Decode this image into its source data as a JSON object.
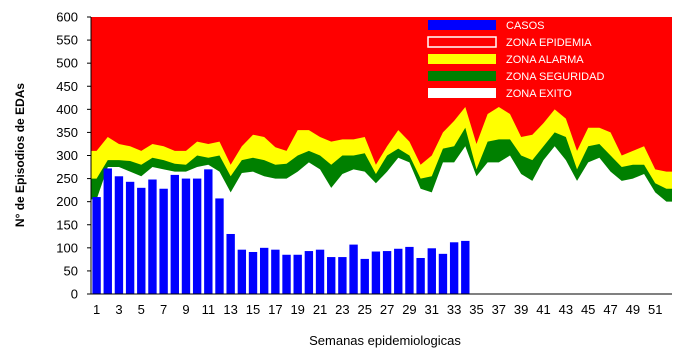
{
  "chart_data": {
    "type": "bar",
    "xlabel": "Semanas epidemiologicas",
    "ylabel": "N° de Episodios de EDAs",
    "ylim": [
      0,
      600
    ],
    "yticks": [
      0,
      50,
      100,
      150,
      200,
      250,
      300,
      350,
      400,
      450,
      500,
      550,
      600
    ],
    "xticks": [
      1,
      3,
      5,
      7,
      9,
      11,
      13,
      15,
      17,
      19,
      21,
      23,
      25,
      27,
      29,
      31,
      33,
      35,
      37,
      39,
      41,
      43,
      45,
      47,
      49,
      51
    ],
    "weeks": [
      1,
      2,
      3,
      4,
      5,
      6,
      7,
      8,
      9,
      10,
      11,
      12,
      13,
      14,
      15,
      16,
      17,
      18,
      19,
      20,
      21,
      22,
      23,
      24,
      25,
      26,
      27,
      28,
      29,
      30,
      31,
      32,
      33,
      34,
      35,
      36,
      37,
      38,
      39,
      40,
      41,
      42,
      43,
      44,
      45,
      46,
      47,
      48,
      49,
      50,
      51,
      52
    ],
    "legend_position": "top-right",
    "grid": false,
    "series": [
      {
        "name": "CASOS",
        "kind": "bar",
        "color": "#0000ff",
        "values": [
          210,
          272,
          255,
          243,
          230,
          248,
          228,
          258,
          250,
          250,
          270,
          207,
          130,
          96,
          91,
          100,
          96,
          85,
          85,
          93,
          96,
          80,
          80,
          107,
          76,
          92,
          93,
          98,
          102,
          78,
          99,
          87,
          112,
          115
        ]
      },
      {
        "name": "ZONA EPIDEMIA",
        "kind": "area",
        "color": "#ff0000",
        "values": [
          600,
          600,
          600,
          600,
          600,
          600,
          600,
          600,
          600,
          600,
          600,
          600,
          600,
          600,
          600,
          600,
          600,
          600,
          600,
          600,
          600,
          600,
          600,
          600,
          600,
          600,
          600,
          600,
          600,
          600,
          600,
          600,
          600,
          600,
          600,
          600,
          600,
          600,
          600,
          600,
          600,
          600,
          600,
          600,
          600,
          600,
          600,
          600,
          600,
          600,
          600,
          600
        ]
      },
      {
        "name": "ZONA ALARMA",
        "kind": "area",
        "color": "#ffff00",
        "values": [
          310,
          340,
          325,
          320,
          310,
          325,
          320,
          310,
          310,
          330,
          325,
          330,
          280,
          320,
          345,
          340,
          318,
          310,
          355,
          355,
          340,
          330,
          335,
          335,
          340,
          280,
          320,
          355,
          330,
          280,
          300,
          350,
          375,
          405,
          325,
          390,
          405,
          390,
          340,
          345,
          370,
          400,
          380,
          310,
          360,
          360,
          350,
          300,
          310,
          320,
          270,
          265
        ]
      },
      {
        "name": "ZONA SEGURIDAD",
        "kind": "area",
        "color": "#008000",
        "values": [
          250,
          290,
          290,
          288,
          280,
          295,
          290,
          282,
          280,
          300,
          295,
          300,
          255,
          290,
          295,
          290,
          280,
          282,
          300,
          310,
          300,
          280,
          300,
          300,
          305,
          260,
          300,
          315,
          300,
          250,
          255,
          315,
          320,
          360,
          270,
          330,
          335,
          335,
          300,
          290,
          320,
          350,
          340,
          270,
          320,
          325,
          300,
          275,
          280,
          280,
          240,
          228
        ]
      },
      {
        "name": "ZONA EXITO",
        "kind": "area",
        "color": "#ffffff",
        "values": [
          205,
          275,
          275,
          265,
          255,
          275,
          270,
          265,
          265,
          275,
          280,
          265,
          220,
          262,
          265,
          255,
          250,
          250,
          265,
          285,
          270,
          230,
          260,
          270,
          265,
          240,
          265,
          295,
          285,
          228,
          220,
          285,
          285,
          320,
          255,
          285,
          285,
          300,
          260,
          245,
          290,
          320,
          290,
          245,
          285,
          295,
          265,
          245,
          250,
          260,
          220,
          200
        ]
      }
    ]
  }
}
